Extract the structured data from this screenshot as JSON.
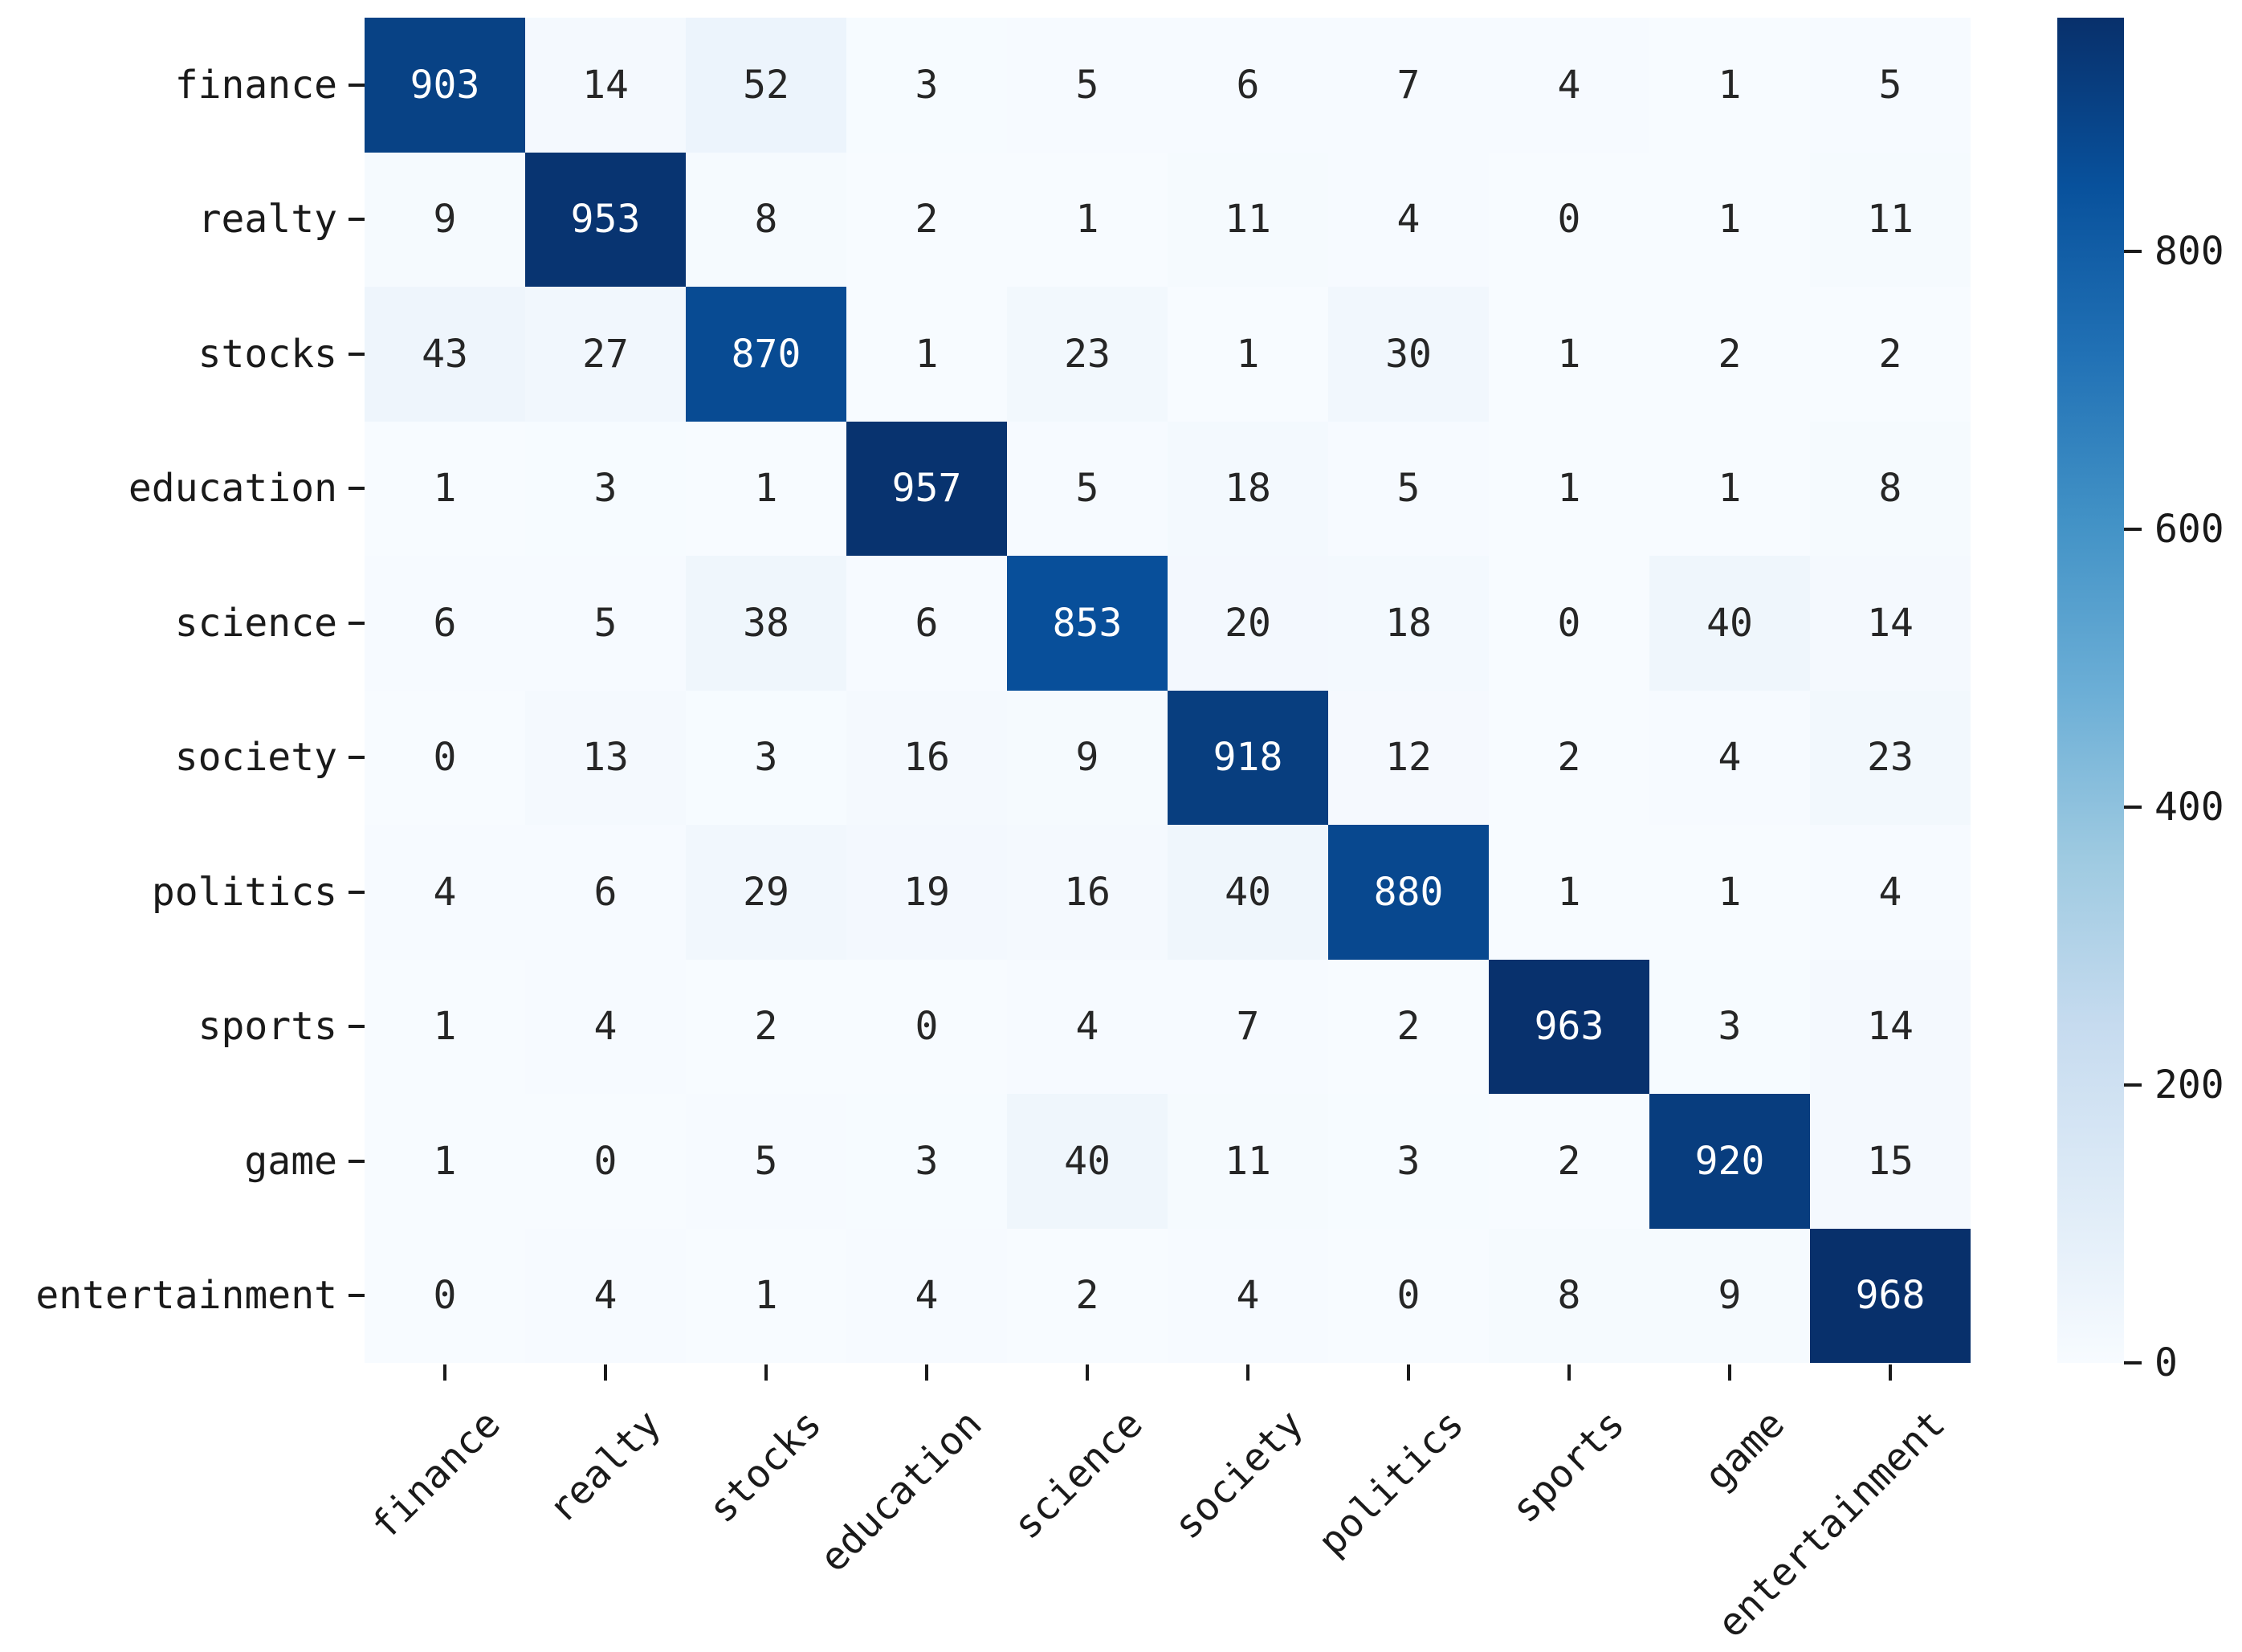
{
  "chart_data": {
    "type": "heatmap",
    "title": "",
    "xlabel": "",
    "ylabel": "",
    "row_categories": [
      "finance",
      "realty",
      "stocks",
      "education",
      "science",
      "society",
      "politics",
      "sports",
      "game",
      "entertainment"
    ],
    "col_categories": [
      "finance",
      "realty",
      "stocks",
      "education",
      "science",
      "society",
      "politics",
      "sports",
      "game",
      "entertainment"
    ],
    "matrix": [
      [
        903,
        14,
        52,
        3,
        5,
        6,
        7,
        4,
        1,
        5
      ],
      [
        9,
        953,
        8,
        2,
        1,
        11,
        4,
        0,
        1,
        11
      ],
      [
        43,
        27,
        870,
        1,
        23,
        1,
        30,
        1,
        2,
        2
      ],
      [
        1,
        3,
        1,
        957,
        5,
        18,
        5,
        1,
        1,
        8
      ],
      [
        6,
        5,
        38,
        6,
        853,
        20,
        18,
        0,
        40,
        14
      ],
      [
        0,
        13,
        3,
        16,
        9,
        918,
        12,
        2,
        4,
        23
      ],
      [
        4,
        6,
        29,
        19,
        16,
        40,
        880,
        1,
        1,
        4
      ],
      [
        1,
        4,
        2,
        0,
        4,
        7,
        2,
        963,
        3,
        14
      ],
      [
        1,
        0,
        5,
        3,
        40,
        11,
        3,
        2,
        920,
        15
      ],
      [
        0,
        4,
        1,
        4,
        2,
        4,
        0,
        8,
        9,
        968
      ]
    ],
    "vmin": 0,
    "vmax": 968,
    "colormap": {
      "name": "Blues",
      "anchors": [
        "#f7fbff",
        "#deebf7",
        "#c6dbef",
        "#9ecae1",
        "#6baed6",
        "#4292c6",
        "#2171b5",
        "#08519c",
        "#08306b"
      ]
    },
    "annotation_text_dark": "#262626",
    "annotation_text_light": "#ffffff",
    "axis_tick_color": "#1a1a1a",
    "colorbar": {
      "position": "right",
      "ticks": [
        0,
        200,
        400,
        600,
        800
      ]
    },
    "grid": false,
    "legend_position": "right-colorbar"
  }
}
